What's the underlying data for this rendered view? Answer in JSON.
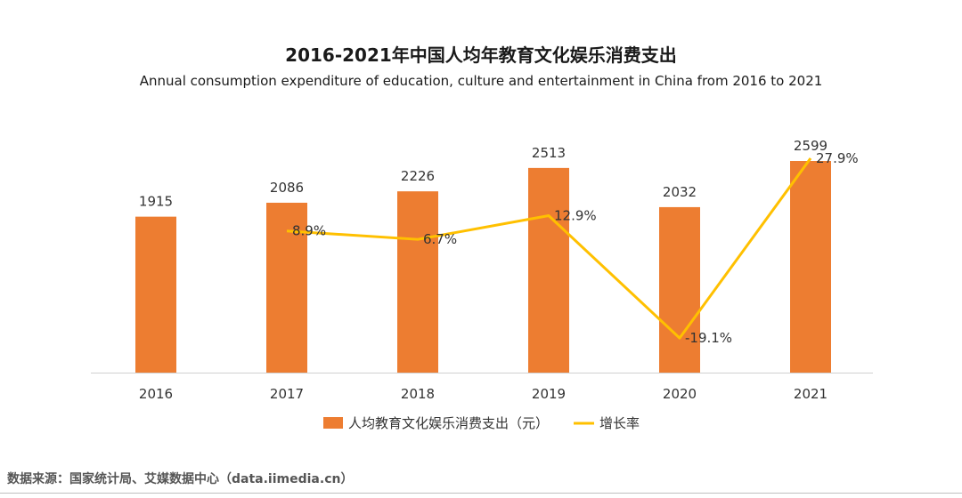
{
  "chart_data": {
    "type": "bar",
    "title": "2016-2021年中国人均年教育文化娱乐消费支出",
    "subtitle": "Annual consumption expenditure of education, culture and entertainment in China from 2016 to 2021",
    "categories": [
      "2016",
      "2017",
      "2018",
      "2019",
      "2020",
      "2021"
    ],
    "series": [
      {
        "name": "人均教育文化娱乐消费支出（元）",
        "type": "bar",
        "color": "#ED7D31",
        "values": [
          1915,
          2086,
          2226,
          2513,
          2032,
          2599
        ],
        "labels": [
          "1915",
          "2086",
          "2226",
          "2513",
          "2032",
          "2599"
        ]
      },
      {
        "name": "增长率",
        "type": "line",
        "color": "#FFC000",
        "values": [
          null,
          8.9,
          6.7,
          12.9,
          -19.1,
          27.9
        ],
        "labels": [
          null,
          "8.9%",
          "6.7%",
          "12.9%",
          "-19.1%",
          "27.9%"
        ]
      }
    ],
    "ylim": [
      0,
      3000
    ],
    "y2lim": [
      -25,
      35
    ],
    "legend": "bottom-center"
  },
  "source": "数据来源：国家统计局、艾媒数据中心（data.iimedia.cn）"
}
